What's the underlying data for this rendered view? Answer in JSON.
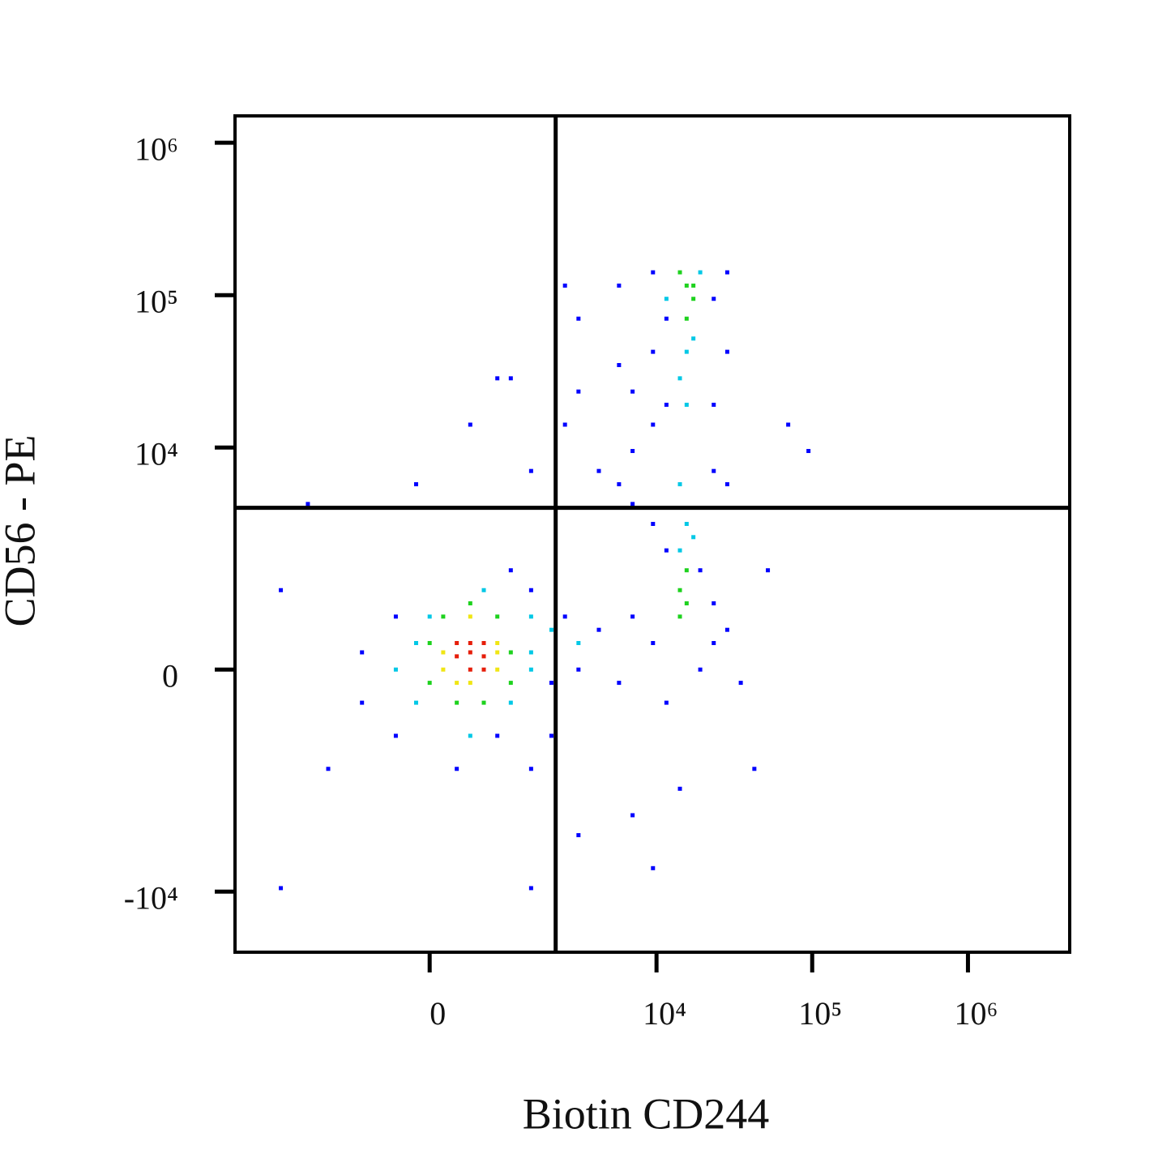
{
  "chart_data": {
    "type": "scatter",
    "x_label": "Biotin CD244",
    "y_label": "CD56 - PE",
    "scale": "biexponential",
    "xlim": [
      -6200,
      4500000
    ],
    "ylim": [
      -25000,
      1500000
    ],
    "xticks": [
      0,
      {
        "value": 10000,
        "label": "10⁴"
      },
      {
        "value": 100000,
        "label": "10⁵"
      },
      {
        "value": 1000000,
        "label": "10⁶"
      }
    ],
    "yticks": [
      {
        "value": -10000,
        "label": "-10⁴"
      },
      0,
      {
        "value": 10000,
        "label": "10⁴"
      },
      {
        "value": 100000,
        "label": "10⁵"
      },
      {
        "value": 1000000,
        "label": "10⁶"
      }
    ],
    "gates": {
      "x": 2200,
      "y": 4000
    },
    "series": [
      {
        "color": "#0000ff",
        "x": [
          -823,
          -365,
          1490,
          823,
          288,
          1056,
          2060,
          -823,
          2540,
          3120,
          4240,
          5730,
          7010,
          9490,
          11580,
          19100,
          23320,
          28480,
          34790,
          23320,
          19100,
          11580,
          9490,
          7010,
          5730,
          4240,
          7010,
          9490,
          11580,
          7010,
          5730,
          9490,
          11580,
          23320,
          28480,
          9490,
          5730,
          28480,
          23320,
          23320,
          3120,
          1490,
          -141,
          1056,
          2540,
          28480,
          70140,
          94640,
          51940,
          42520,
          3120,
          -1490,
          -3120,
          1490,
          9490,
          14140,
          2060,
          -365,
          1490,
          7010,
          -3120,
          -2060,
          446,
          823,
          2540,
          3120
        ],
        "y": [
          184,
          622,
          1056,
          -823,
          -1490,
          1490,
          -141,
          -365,
          622,
          0,
          446,
          -141,
          622,
          288,
          -365,
          0,
          288,
          446,
          -141,
          823,
          1490,
          2060,
          3120,
          4240,
          5730,
          7010,
          9490,
          14140,
          19100,
          23320,
          34790,
          42520,
          70140,
          94640,
          141200,
          141200,
          115570,
          42520,
          19100,
          7010,
          23320,
          7010,
          5730,
          28480,
          14140,
          5730,
          14140,
          9490,
          1490,
          -1490,
          -4240,
          -1490,
          -9490,
          -9490,
          -7010,
          -2060,
          -823,
          -823,
          -1490,
          -3120,
          1056,
          4240,
          14140,
          28480,
          115570,
          70140
        ]
      },
      {
        "color": "#00c8e6",
        "x": [
          1490,
          -141,
          622,
          446,
          1490,
          -365,
          0,
          1056,
          1490,
          -141,
          15620,
          14140,
          15620,
          14140,
          17260,
          14140,
          19100,
          11580,
          17260,
          15620,
          2060,
          3120
        ],
        "y": [
          184,
          288,
          1056,
          -823,
          0,
          0,
          622,
          -365,
          622,
          -365,
          42520,
          28480,
          19100,
          5730,
          2540,
          2060,
          141200,
          94640,
          51940,
          3120,
          446,
          288
        ]
      },
      {
        "color": "#1ed21e",
        "x": [
          1056,
          0,
          446,
          622,
          1056,
          0,
          141,
          288,
          823,
          14140,
          15620,
          14140,
          15620,
          15620,
          17260,
          14140,
          17260,
          15620
        ],
        "y": [
          184,
          288,
          823,
          -365,
          -141,
          -141,
          622,
          -365,
          622,
          1056,
          823,
          622,
          1490,
          115570,
          94640,
          141200,
          115570,
          70140
        ]
      },
      {
        "color": "#f0e614",
        "x": [
          823,
          141,
          446,
          446,
          823,
          288,
          823,
          141
        ],
        "y": [
          184,
          184,
          622,
          -141,
          0,
          -141,
          288,
          0
        ]
      },
      {
        "color": "#e61e0a",
        "x": [
          446,
          622,
          288,
          446,
          622,
          446,
          288,
          622
        ],
        "y": [
          184,
          141,
          288,
          0,
          288,
          288,
          141,
          0
        ]
      }
    ]
  }
}
